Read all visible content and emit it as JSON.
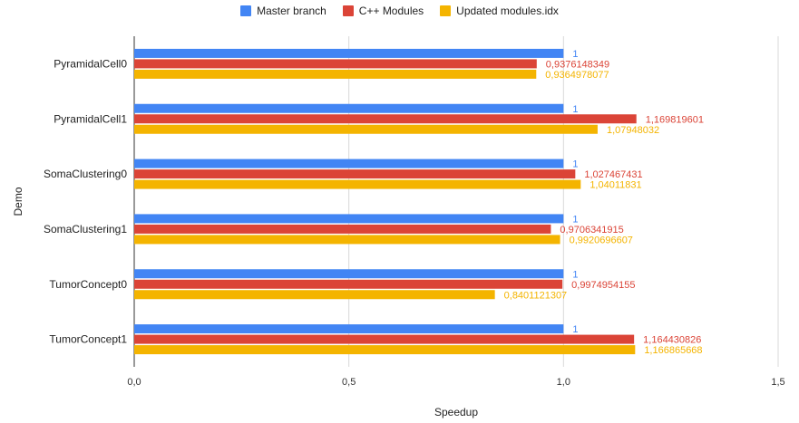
{
  "chart_data": {
    "type": "bar",
    "orientation": "horizontal",
    "categories": [
      "PyramidalCell0",
      "PyramidalCell1",
      "SomaClustering0",
      "SomaClustering1",
      "TumorConcept0",
      "TumorConcept1"
    ],
    "series": [
      {
        "name": "Master branch",
        "color": "#4285f4",
        "values": [
          1,
          1,
          1,
          1,
          1,
          1
        ],
        "labels": [
          "1",
          "1",
          "1",
          "1",
          "1",
          "1"
        ]
      },
      {
        "name": "C++ Modules",
        "color": "#db4437",
        "values": [
          0.9376148349,
          1.169819601,
          1.027467431,
          0.9706341915,
          0.9974954155,
          1.164430826
        ],
        "labels": [
          "0,9376148349",
          "1,169819601",
          "1,027467431",
          "0,9706341915",
          "0,9974954155",
          "1,164430826"
        ]
      },
      {
        "name": "Updated modules.idx",
        "color": "#f4b400",
        "values": [
          0.9364978077,
          1.07948032,
          1.04011831,
          0.9920696607,
          0.8401121307,
          1.166865668
        ],
        "labels": [
          "0,9364978077",
          "1,07948032",
          "1,04011831",
          "0,9920696607",
          "0,8401121307",
          "1,166865668"
        ]
      }
    ],
    "xlabel": "Speedup",
    "ylabel": "Demo",
    "xlim": [
      0,
      1.5
    ],
    "xticks": [
      0,
      0.5,
      1.0,
      1.5
    ],
    "xtick_labels": [
      "0,0",
      "0,5",
      "1,0",
      "1,5"
    ],
    "grid": true,
    "legend_position": "top-center"
  }
}
